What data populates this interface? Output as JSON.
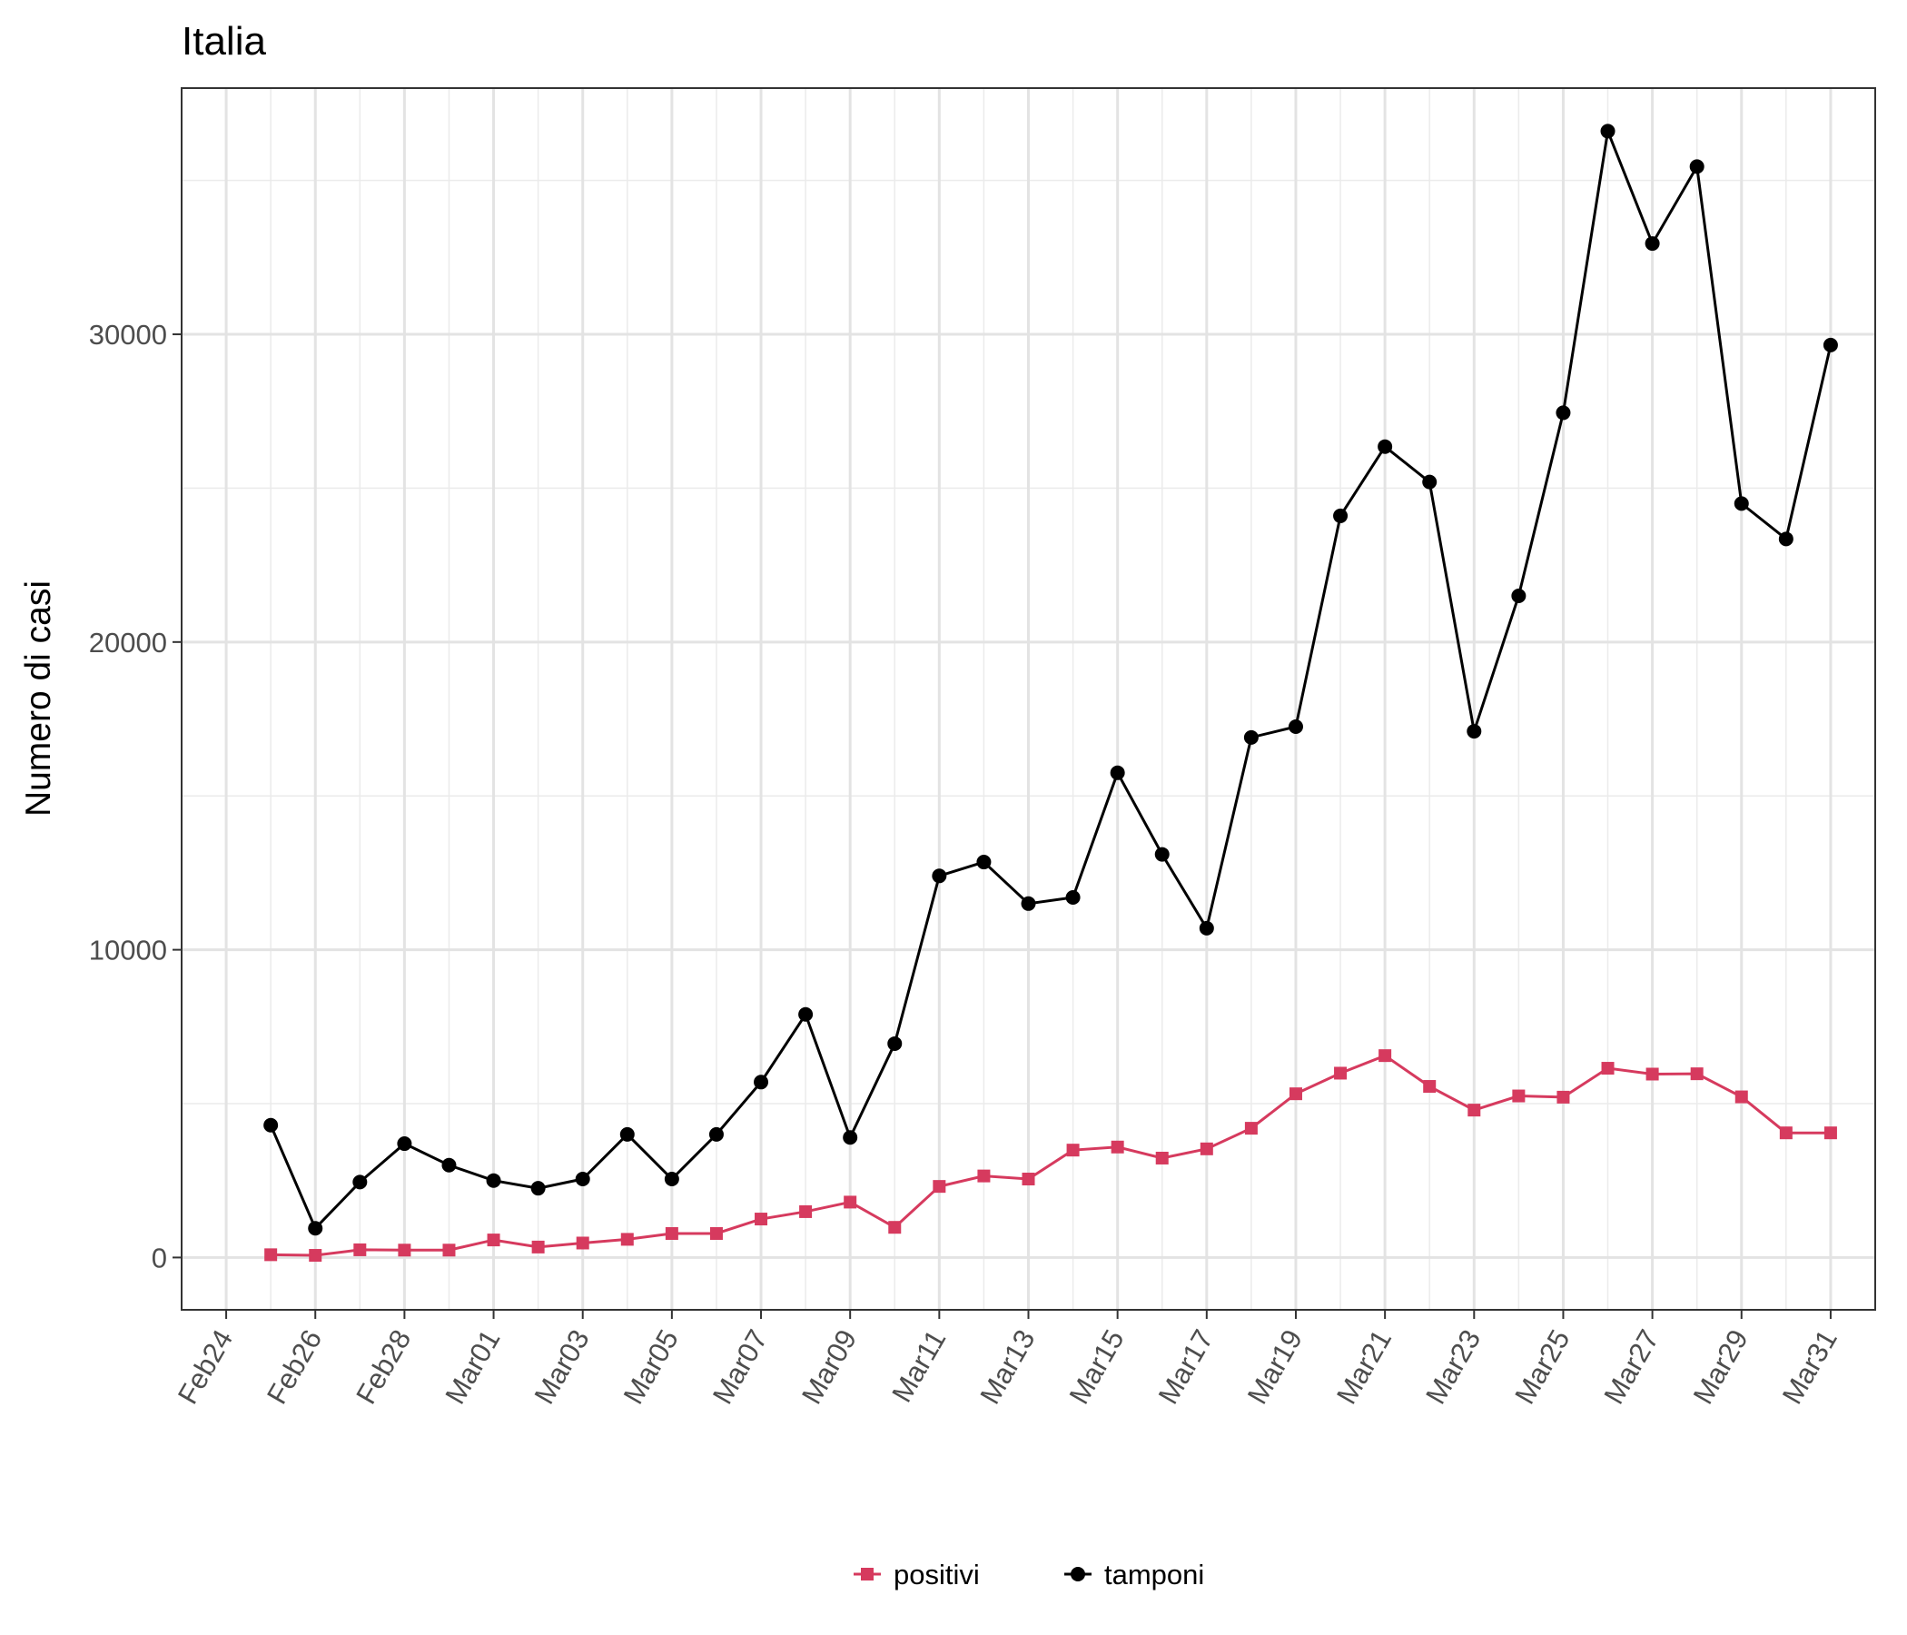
{
  "chart_data": {
    "type": "line",
    "title": "Italia",
    "xlabel": "",
    "ylabel": "Numero di casi",
    "x_ticks": [
      "Feb24",
      "Feb26",
      "Feb28",
      "Mar01",
      "Mar03",
      "Mar05",
      "Mar07",
      "Mar09",
      "Mar11",
      "Mar13",
      "Mar15",
      "Mar17",
      "Mar19",
      "Mar21",
      "Mar23",
      "Mar25",
      "Mar27",
      "Mar29",
      "Mar31"
    ],
    "y_ticks": [
      0,
      10000,
      20000,
      30000
    ],
    "ylim": [
      -1700,
      38000
    ],
    "xlim": [
      "2020-02-23",
      "2020-04-01"
    ],
    "grid": true,
    "legend_position": "bottom",
    "x": [
      "2020-02-25",
      "2020-02-26",
      "2020-02-27",
      "2020-02-28",
      "2020-02-29",
      "2020-03-01",
      "2020-03-02",
      "2020-03-03",
      "2020-03-04",
      "2020-03-05",
      "2020-03-06",
      "2020-03-07",
      "2020-03-08",
      "2020-03-09",
      "2020-03-10",
      "2020-03-11",
      "2020-03-12",
      "2020-03-13",
      "2020-03-14",
      "2020-03-15",
      "2020-03-16",
      "2020-03-17",
      "2020-03-18",
      "2020-03-19",
      "2020-03-20",
      "2020-03-21",
      "2020-03-22",
      "2020-03-23",
      "2020-03-24",
      "2020-03-25",
      "2020-03-26",
      "2020-03-27",
      "2020-03-28",
      "2020-03-29",
      "2020-03-30",
      "2020-03-31"
    ],
    "series": [
      {
        "name": "positivi",
        "color": "#d63a5e",
        "marker": "square",
        "values": [
          90,
          70,
          250,
          240,
          240,
          570,
          340,
          470,
          590,
          780,
          780,
          1250,
          1490,
          1800,
          980,
          2310,
          2650,
          2550,
          3490,
          3590,
          3230,
          3530,
          4200,
          5320,
          5990,
          6560,
          5560,
          4790,
          5250,
          5210,
          6150,
          5960,
          5970,
          5220,
          4050,
          4050
        ]
      },
      {
        "name": "tamponi",
        "color": "#000000",
        "marker": "circle",
        "values": [
          4300,
          950,
          2450,
          3700,
          3000,
          2500,
          2250,
          2550,
          4000,
          2550,
          4000,
          5700,
          7900,
          3900,
          6950,
          12400,
          12850,
          11500,
          11700,
          15750,
          13100,
          10700,
          16900,
          17250,
          24100,
          26350,
          25200,
          17100,
          21500,
          27450,
          36600,
          32950,
          35450,
          24500,
          23350,
          29650
        ]
      }
    ]
  }
}
